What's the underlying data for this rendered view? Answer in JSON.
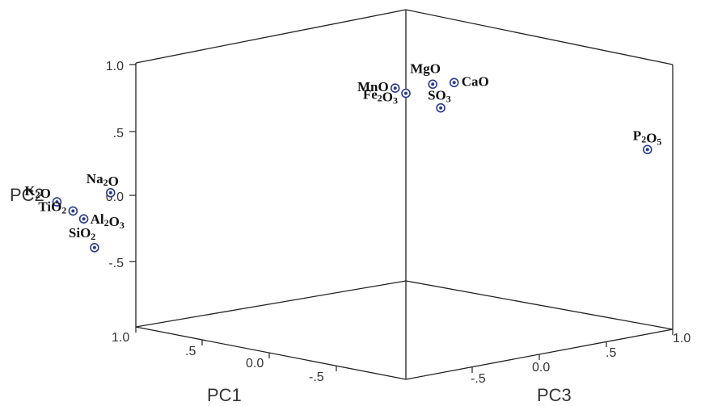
{
  "chart_data": {
    "type": "scatter",
    "title": "",
    "axes": {
      "x": {
        "label": "PC1",
        "range": [
          -1.0,
          1.0
        ],
        "ticks": [
          "1.0",
          ".5",
          "0.0",
          "-.5"
        ]
      },
      "y": {
        "label": "PC2",
        "range": [
          -1.0,
          1.0
        ],
        "ticks": [
          "1.0",
          ".5",
          "0.0",
          "-.5"
        ]
      },
      "z": {
        "label": "PC3",
        "range": [
          -1.0,
          1.0
        ],
        "ticks": [
          "-.5",
          "0.0",
          ".5",
          "1.0"
        ]
      }
    },
    "points": [
      {
        "label": "MgO",
        "pc1": -0.05,
        "pc2": 0.85,
        "pc3": 0.05
      },
      {
        "label": "CaO",
        "pc1": -0.08,
        "pc2": 0.87,
        "pc3": 0.1
      },
      {
        "label": "MnO",
        "pc1": 0.02,
        "pc2": 0.82,
        "pc3": -0.02
      },
      {
        "label": "Fe2O3",
        "pc1": 0.0,
        "pc2": 0.78,
        "pc3": 0.0
      },
      {
        "label": "SO3",
        "pc1": -0.05,
        "pc2": 0.68,
        "pc3": 0.08
      },
      {
        "label": "P2O5",
        "pc1": -0.45,
        "pc2": 0.35,
        "pc3": 0.45
      },
      {
        "label": "Na2O",
        "pc1": 0.55,
        "pc2": 0.02,
        "pc3": -0.55
      },
      {
        "label": "K2O",
        "pc1": 0.65,
        "pc2": -0.05,
        "pc3": -0.65
      },
      {
        "label": "TiO2",
        "pc1": 0.62,
        "pc2": -0.12,
        "pc3": -0.62
      },
      {
        "label": "Al2O3",
        "pc1": 0.6,
        "pc2": -0.18,
        "pc3": -0.6
      },
      {
        "label": "SiO2",
        "pc1": 0.58,
        "pc2": -0.4,
        "pc3": -0.58
      }
    ],
    "grid": false,
    "legend": "none"
  }
}
